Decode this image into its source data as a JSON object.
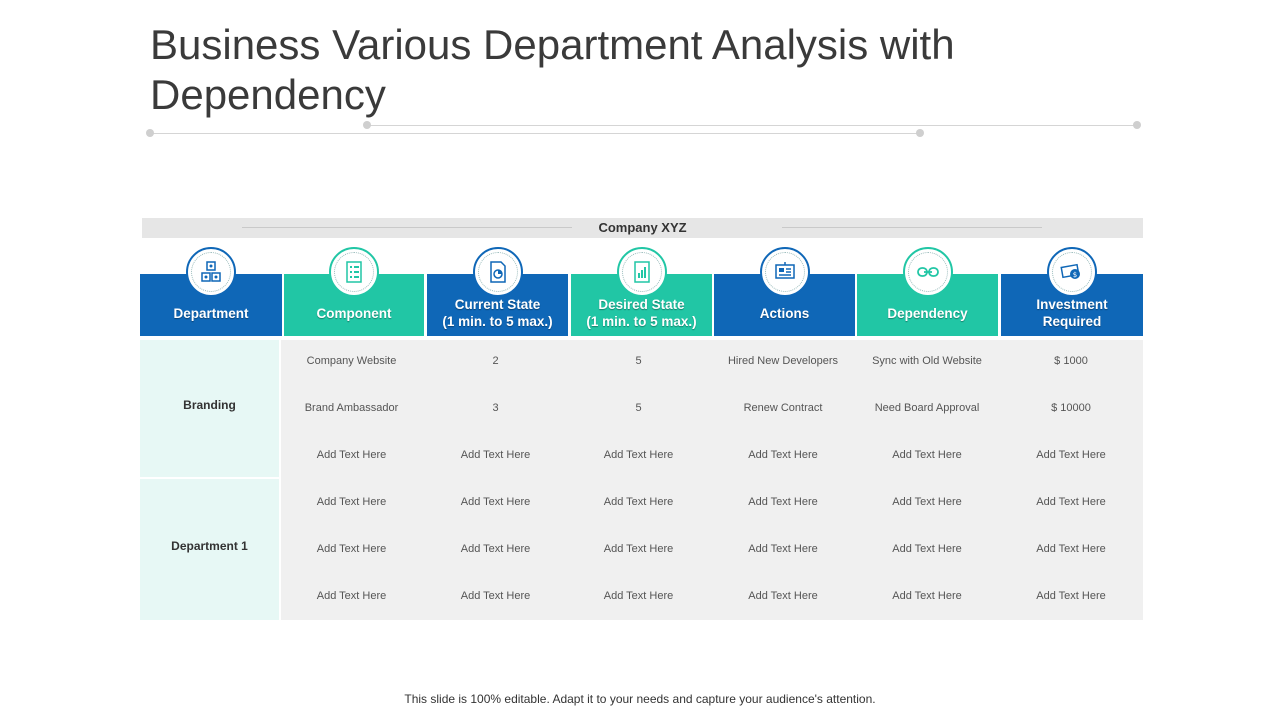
{
  "title": "Business Various Department Analysis with Dependency",
  "table": {
    "company": "Company XYZ",
    "headers": [
      {
        "label": "Department",
        "icon": "departments-icon",
        "color": "#0f67b7"
      },
      {
        "label": "Component",
        "icon": "checklist-icon",
        "color": "#21c6a5"
      },
      {
        "label": "Current State\n(1 min. to 5 max.)",
        "icon": "pie-chart-document-icon",
        "color": "#0f67b7"
      },
      {
        "label": "Desired State\n(1 min. to 5 max.)",
        "icon": "bar-chart-document-icon",
        "color": "#21c6a5"
      },
      {
        "label": "Actions",
        "icon": "presentation-board-icon",
        "color": "#0f67b7"
      },
      {
        "label": "Dependency",
        "icon": "link-chain-icon",
        "color": "#21c6a5"
      },
      {
        "label": "Investment\nRequired",
        "icon": "money-icon",
        "color": "#0f67b7"
      }
    ],
    "groups": [
      {
        "department": "Branding",
        "rows": [
          [
            "Company Website",
            "2",
            "5",
            "Hired New Developers",
            "Sync with Old Website",
            "$ 1000"
          ],
          [
            "Brand Ambassador",
            "3",
            "5",
            "Renew Contract",
            "Need Board Approval",
            "$ 10000"
          ],
          [
            "Add Text Here",
            "Add Text Here",
            "Add Text Here",
            "Add Text Here",
            "Add Text Here",
            "Add Text Here"
          ]
        ]
      },
      {
        "department": "Department 1",
        "rows": [
          [
            "Add Text Here",
            "Add Text Here",
            "Add Text Here",
            "Add Text Here",
            "Add Text Here",
            "Add Text Here"
          ],
          [
            "Add Text Here",
            "Add Text Here",
            "Add Text Here",
            "Add Text Here",
            "Add Text Here",
            "Add Text Here"
          ],
          [
            "Add Text Here",
            "Add Text Here",
            "Add Text Here",
            "Add Text Here",
            "Add Text Here",
            "Add Text Here"
          ]
        ]
      }
    ]
  },
  "footer": "This slide is 100% editable. Adapt it to your needs and capture your audience's attention."
}
